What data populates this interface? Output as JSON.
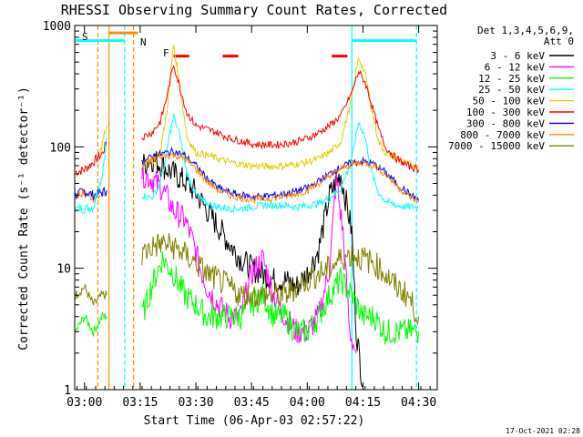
{
  "chart_data": {
    "type": "line",
    "title": "RHESSI Observing Summary Count Rates, Corrected",
    "xlabel": "Start Time (06-Apr-03 02:57:22)",
    "ylabel": "Corrected Count Rate (s⁻¹ detector⁻¹)",
    "xlim": [
      "02:57:22",
      "04:35:00"
    ],
    "ylim": [
      1,
      1000
    ],
    "y_scale": "log",
    "x_tick_labels": [
      "03:00",
      "03:15",
      "03:30",
      "03:45",
      "04:00",
      "04:15",
      "04:30"
    ],
    "y_tick_labels": [
      "1",
      "10",
      "100",
      "1000"
    ],
    "legend_header": [
      "Det 1,3,4,5,6,9,",
      "Att 0"
    ],
    "legend_position": "right",
    "annotations": {
      "saa_flag": "S",
      "night_flag": "N",
      "flare_flag": "F"
    },
    "timestamp": "17-Oct-2021 02:28",
    "x_ticks_min": [
      3.0,
      3.25,
      3.5,
      3.75,
      4.0,
      4.25,
      4.5
    ],
    "series": [
      {
        "name": "3 - 6 keV",
        "color": "#000000",
        "x": [
          3.258,
          3.3,
          3.35,
          3.4,
          3.45,
          3.5,
          3.55,
          3.6,
          3.65,
          3.7,
          3.75,
          3.8,
          3.85,
          3.9,
          3.95,
          4.0,
          4.05,
          4.1,
          4.15,
          4.2,
          4.22,
          4.25
        ],
        "y": [
          70,
          80,
          70,
          60,
          52,
          42,
          30,
          22,
          16,
          12,
          10,
          9,
          8,
          8,
          7,
          9,
          14,
          40,
          60,
          20,
          3,
          1.1
        ]
      },
      {
        "name": "6 - 12 keV",
        "color": "#ff00ff",
        "x": [
          3.258,
          3.3,
          3.35,
          3.4,
          3.45,
          3.48,
          3.52,
          3.55,
          3.6,
          3.65,
          3.7,
          3.75,
          3.8,
          3.85,
          3.9,
          3.95,
          4.0,
          4.05,
          4.1,
          4.13,
          4.16,
          4.19,
          4.22
        ],
        "y": [
          60,
          55,
          45,
          30,
          25,
          18,
          10,
          7,
          5,
          4,
          4,
          9,
          12,
          6,
          4,
          3,
          3,
          4,
          10,
          55,
          20,
          3,
          2
        ]
      },
      {
        "name": "12 - 25 keV",
        "color": "#00ff00",
        "x": [
          3.258,
          3.3,
          3.35,
          3.4,
          3.45,
          3.5,
          3.55,
          3.6,
          3.65,
          3.7,
          3.75,
          3.8,
          3.85,
          3.9,
          3.95,
          4.0,
          4.05,
          4.1,
          4.15,
          4.2,
          4.25,
          4.3,
          4.35,
          4.4,
          4.45,
          4.5
        ],
        "y": [
          4,
          7,
          12,
          9,
          6,
          5,
          4,
          4,
          4,
          4,
          5,
          6,
          4,
          4,
          3,
          3,
          4,
          6,
          8,
          6,
          4,
          4,
          3,
          3,
          3,
          3
        ]
      },
      {
        "name": "25 - 50 keV",
        "color": "#00ffff",
        "x": [
          3.258,
          3.3,
          3.33,
          3.36,
          3.38,
          3.4,
          3.43,
          3.46,
          3.5,
          3.55,
          3.6,
          3.65,
          3.7,
          3.75,
          3.8,
          3.85,
          3.9,
          3.95,
          4.0,
          4.05,
          4.1,
          4.15,
          4.2,
          4.23,
          4.26,
          4.29,
          4.32,
          4.35,
          4.4,
          4.45,
          4.5
        ],
        "y": [
          40,
          38,
          45,
          70,
          120,
          180,
          120,
          60,
          40,
          34,
          32,
          31,
          31,
          32,
          33,
          33,
          33,
          32,
          33,
          34,
          38,
          45,
          80,
          160,
          120,
          60,
          42,
          36,
          33,
          32,
          32
        ]
      },
      {
        "name": "50 - 100 keV",
        "color": "#e0d000",
        "x": [
          3.258,
          3.3,
          3.34,
          3.37,
          3.4,
          3.43,
          3.46,
          3.5,
          3.55,
          3.6,
          3.65,
          3.7,
          3.75,
          3.8,
          3.85,
          3.9,
          3.95,
          4.0,
          4.05,
          4.1,
          4.15,
          4.2,
          4.23,
          4.26,
          4.29,
          4.32,
          4.35,
          4.4,
          4.45,
          4.5
        ],
        "y": [
          70,
          75,
          90,
          200,
          700,
          300,
          120,
          90,
          85,
          80,
          75,
          72,
          70,
          69,
          69,
          70,
          72,
          75,
          80,
          90,
          110,
          250,
          550,
          400,
          200,
          110,
          90,
          80,
          72,
          70
        ]
      },
      {
        "name": "100 - 300 keV",
        "color": "#ff0000",
        "x": [
          3.258,
          3.3,
          3.34,
          3.37,
          3.4,
          3.43,
          3.46,
          3.5,
          3.55,
          3.6,
          3.65,
          3.7,
          3.75,
          3.8,
          3.85,
          3.9,
          3.95,
          4.0,
          4.05,
          4.1,
          4.15,
          4.2,
          4.23,
          4.26,
          4.29,
          4.32,
          4.35,
          4.4,
          4.45,
          4.5
        ],
        "y": [
          120,
          130,
          160,
          260,
          480,
          300,
          190,
          150,
          140,
          130,
          118,
          112,
          106,
          104,
          104,
          106,
          110,
          118,
          130,
          150,
          180,
          280,
          420,
          340,
          220,
          140,
          100,
          80,
          70,
          65
        ]
      },
      {
        "name": "300 - 800 keV",
        "color": "#0000ff",
        "x": [
          3.258,
          3.3,
          3.35,
          3.4,
          3.45,
          3.5,
          3.55,
          3.6,
          3.65,
          3.7,
          3.75,
          3.8,
          3.85,
          3.9,
          3.95,
          4.0,
          4.05,
          4.1,
          4.15,
          4.2,
          4.25,
          4.3,
          4.35,
          4.4,
          4.45,
          4.5
        ],
        "y": [
          75,
          82,
          88,
          92,
          85,
          70,
          55,
          46,
          42,
          40,
          39,
          39,
          40,
          41,
          43,
          46,
          52,
          60,
          68,
          74,
          76,
          72,
          62,
          50,
          42,
          36
        ]
      },
      {
        "name": "800 - 7000 keV",
        "color": "#ff8c00",
        "x": [
          3.258,
          3.3,
          3.35,
          3.4,
          3.45,
          3.5,
          3.55,
          3.6,
          3.65,
          3.7,
          3.75,
          3.8,
          3.85,
          3.9,
          3.95,
          4.0,
          4.05,
          4.1,
          4.15,
          4.2,
          4.25,
          4.3,
          4.35,
          4.4,
          4.45,
          4.5
        ],
        "y": [
          70,
          78,
          84,
          86,
          80,
          66,
          52,
          44,
          40,
          38,
          37,
          37,
          38,
          39,
          41,
          44,
          50,
          58,
          66,
          72,
          74,
          70,
          60,
          48,
          40,
          35
        ]
      },
      {
        "name": "7000 - 15000 keV",
        "color": "#808000",
        "x": [
          3.258,
          3.3,
          3.35,
          3.4,
          3.45,
          3.5,
          3.55,
          3.6,
          3.65,
          3.7,
          3.75,
          3.8,
          3.85,
          3.9,
          3.95,
          4.0,
          4.05,
          4.1,
          4.15,
          4.2,
          4.25,
          4.3,
          4.35,
          4.4,
          4.45,
          4.5
        ],
        "y": [
          13,
          15,
          16,
          15,
          13,
          11,
          9,
          8,
          7,
          6,
          6,
          6,
          6,
          6,
          7,
          8,
          9,
          10,
          12,
          13,
          12,
          11,
          9,
          7,
          6,
          4
        ]
      }
    ],
    "early_series": [
      {
        "color": "#ff0000",
        "x": [
          2.96,
          3.0,
          3.04,
          3.08,
          3.1
        ],
        "y": [
          62,
          65,
          75,
          88,
          110
        ]
      },
      {
        "color": "#ff8c00",
        "x": [
          2.96,
          3.0,
          3.04,
          3.08,
          3.1
        ],
        "y": [
          40,
          42,
          38,
          40,
          42
        ]
      },
      {
        "color": "#0000ff",
        "x": [
          2.96,
          3.0,
          3.04,
          3.08,
          3.1
        ],
        "y": [
          40,
          43,
          40,
          42,
          44
        ]
      },
      {
        "color": "#00ffff",
        "x": [
          2.96,
          3.0,
          3.04,
          3.08,
          3.1
        ],
        "y": [
          31,
          31,
          32,
          60,
          120
        ]
      },
      {
        "color": "#e0d000",
        "x": [
          3.07,
          3.08,
          3.09,
          3.1
        ],
        "y": [
          90,
          100,
          130,
          150
        ]
      },
      {
        "color": "#808000",
        "x": [
          2.96,
          3.0,
          3.04,
          3.08,
          3.1
        ],
        "y": [
          6,
          7,
          5,
          6,
          6
        ]
      },
      {
        "color": "#00ff00",
        "x": [
          2.96,
          3.0,
          3.04,
          3.08,
          3.1
        ],
        "y": [
          3,
          4,
          3,
          4,
          4
        ]
      }
    ],
    "flag_bars": [
      {
        "color": "#ff0000",
        "x0": 3.4,
        "x1": 3.47,
        "y": 560
      },
      {
        "color": "#ff0000",
        "x0": 3.62,
        "x1": 3.69,
        "y": 560
      },
      {
        "color": "#ff0000",
        "x0": 4.11,
        "x1": 4.18,
        "y": 560
      },
      {
        "color": "#ff8c00",
        "x0": 3.11,
        "x1": 3.24,
        "y": 870
      },
      {
        "color": "#00ffff",
        "x0": 2.96,
        "x1": 3.18,
        "y": 750
      },
      {
        "color": "#00ffff",
        "x0": 4.2,
        "x1": 4.49,
        "y": 750
      }
    ],
    "vlines": [
      {
        "color": "#ff8c00",
        "x": 3.06,
        "style": "dashed"
      },
      {
        "color": "#ff8c00",
        "x": 3.11,
        "style": "solid"
      },
      {
        "color": "#ff8c00",
        "x": 3.22,
        "style": "dashed"
      },
      {
        "color": "#00ffff",
        "x": 3.18,
        "style": "dashed"
      },
      {
        "color": "#00ffff",
        "x": 4.2,
        "style": "solid"
      },
      {
        "color": "#00ffff",
        "x": 4.49,
        "style": "dashed"
      }
    ]
  }
}
